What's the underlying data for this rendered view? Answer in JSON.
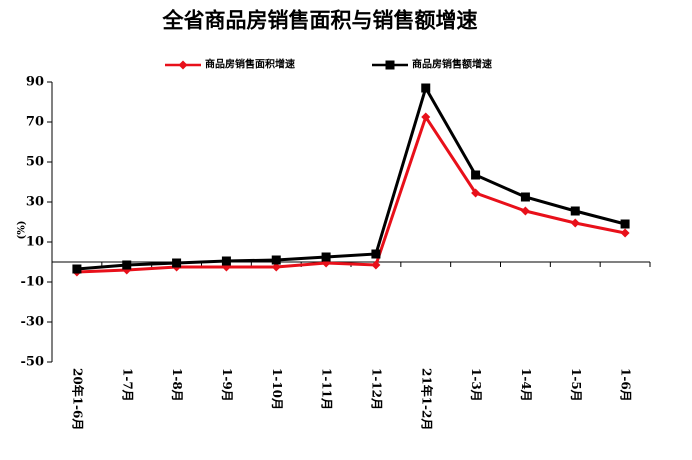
{
  "chart_data": {
    "type": "line",
    "title": "全省商品房销售面积与销售额增速",
    "y_label": "(%)",
    "categories": [
      "20年1-6月",
      "1-7月",
      "1-8月",
      "1-9月",
      "1-10月",
      "1-11月",
      "1-12月",
      "21年1-2月",
      "1-3月",
      "1-4月",
      "1-5月",
      "1-6月"
    ],
    "series": [
      {
        "name": "商品房销售面积增速",
        "color": "#e8101a",
        "marker": "diamond",
        "values": [
          -5,
          -4,
          -2.5,
          -2.5,
          -2.5,
          -0.5,
          -1.5,
          72.5,
          34.5,
          25.5,
          19.5,
          14.5
        ]
      },
      {
        "name": "商品房销售额增速",
        "color": "#000000",
        "marker": "square",
        "values": [
          -3.5,
          -1.5,
          -0.5,
          0.5,
          1,
          2.5,
          4,
          87,
          43.5,
          32.5,
          25.5,
          19
        ]
      }
    ],
    "ylim": [
      -50,
      90
    ],
    "yticks": [
      -50,
      -30,
      -10,
      10,
      30,
      50,
      70,
      90
    ],
    "grid": false
  }
}
